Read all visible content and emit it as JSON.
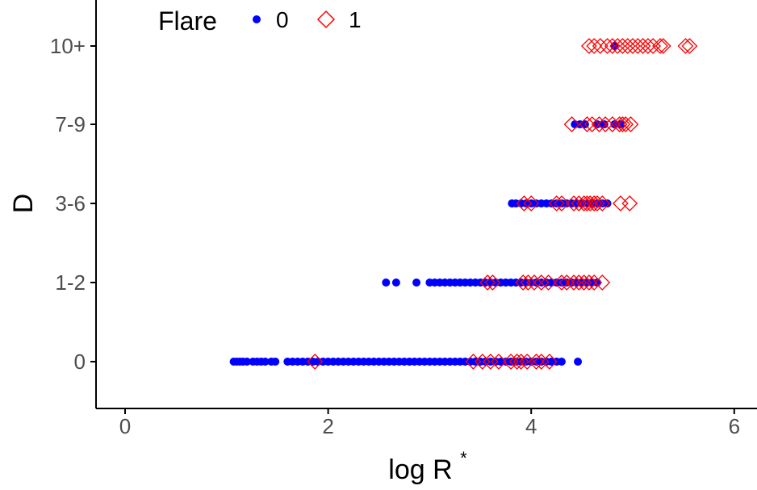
{
  "chart_data": {
    "type": "scatter",
    "xlabel_main": "log R",
    "xlabel_sup": "*",
    "ylabel": "D",
    "xlim": [
      -0.3,
      6.25
    ],
    "x_ticks": [
      0,
      2,
      4,
      6
    ],
    "x_tick_labels": [
      "0",
      "2",
      "4",
      "6"
    ],
    "categories": [
      "0",
      "1-2",
      "3-6",
      "7-9",
      "10+"
    ],
    "legend": {
      "title": "Flare",
      "position": "top-left",
      "entries": [
        "0",
        "1"
      ]
    },
    "colors": {
      "series_0": "#0000ff",
      "series_1": "#ff0000"
    },
    "series": [
      {
        "name": "0",
        "marker": "filled-circle",
        "points": [
          [
            "0",
            1.07
          ],
          [
            "0",
            1.1
          ],
          [
            "0",
            1.13
          ],
          [
            "0",
            1.16
          ],
          [
            "0",
            1.2
          ],
          [
            "0",
            1.26
          ],
          [
            "0",
            1.3
          ],
          [
            "0",
            1.34
          ],
          [
            "0",
            1.38
          ],
          [
            "0",
            1.44
          ],
          [
            "0",
            1.48
          ],
          [
            "0",
            1.6
          ],
          [
            "0",
            1.65
          ],
          [
            "0",
            1.7
          ],
          [
            "0",
            1.75
          ],
          [
            "0",
            1.8
          ],
          [
            "0",
            1.85
          ],
          [
            "0",
            1.9
          ],
          [
            "0",
            1.95
          ],
          [
            "0",
            2.0
          ],
          [
            "0",
            2.05
          ],
          [
            "0",
            2.1
          ],
          [
            "0",
            2.15
          ],
          [
            "0",
            2.2
          ],
          [
            "0",
            2.25
          ],
          [
            "0",
            2.3
          ],
          [
            "0",
            2.35
          ],
          [
            "0",
            2.4
          ],
          [
            "0",
            2.45
          ],
          [
            "0",
            2.5
          ],
          [
            "0",
            2.55
          ],
          [
            "0",
            2.6
          ],
          [
            "0",
            2.65
          ],
          [
            "0",
            2.7
          ],
          [
            "0",
            2.75
          ],
          [
            "0",
            2.8
          ],
          [
            "0",
            2.85
          ],
          [
            "0",
            2.9
          ],
          [
            "0",
            2.95
          ],
          [
            "0",
            3.0
          ],
          [
            "0",
            3.05
          ],
          [
            "0",
            3.1
          ],
          [
            "0",
            3.15
          ],
          [
            "0",
            3.2
          ],
          [
            "0",
            3.25
          ],
          [
            "0",
            3.3
          ],
          [
            "0",
            3.35
          ],
          [
            "0",
            3.4
          ],
          [
            "0",
            3.45
          ],
          [
            "0",
            3.5
          ],
          [
            "0",
            3.55
          ],
          [
            "0",
            3.6
          ],
          [
            "0",
            3.65
          ],
          [
            "0",
            3.7
          ],
          [
            "0",
            3.75
          ],
          [
            "0",
            3.8
          ],
          [
            "0",
            3.85
          ],
          [
            "0",
            3.9
          ],
          [
            "0",
            3.95
          ],
          [
            "0",
            4.0
          ],
          [
            "0",
            4.05
          ],
          [
            "0",
            4.1
          ],
          [
            "0",
            4.15
          ],
          [
            "0",
            4.2
          ],
          [
            "0",
            4.25
          ],
          [
            "0",
            4.3
          ],
          [
            "0",
            4.46
          ],
          [
            "1-2",
            2.57
          ],
          [
            "1-2",
            2.67
          ],
          [
            "1-2",
            2.87
          ],
          [
            "1-2",
            3.0
          ],
          [
            "1-2",
            3.05
          ],
          [
            "1-2",
            3.1
          ],
          [
            "1-2",
            3.15
          ],
          [
            "1-2",
            3.2
          ],
          [
            "1-2",
            3.25
          ],
          [
            "1-2",
            3.3
          ],
          [
            "1-2",
            3.35
          ],
          [
            "1-2",
            3.4
          ],
          [
            "1-2",
            3.45
          ],
          [
            "1-2",
            3.5
          ],
          [
            "1-2",
            3.55
          ],
          [
            "1-2",
            3.6
          ],
          [
            "1-2",
            3.65
          ],
          [
            "1-2",
            3.7
          ],
          [
            "1-2",
            3.75
          ],
          [
            "1-2",
            3.8
          ],
          [
            "1-2",
            3.85
          ],
          [
            "1-2",
            3.9
          ],
          [
            "1-2",
            3.95
          ],
          [
            "1-2",
            4.0
          ],
          [
            "1-2",
            4.05
          ],
          [
            "1-2",
            4.1
          ],
          [
            "1-2",
            4.15
          ],
          [
            "1-2",
            4.2
          ],
          [
            "1-2",
            4.25
          ],
          [
            "1-2",
            4.3
          ],
          [
            "1-2",
            4.35
          ],
          [
            "1-2",
            4.4
          ],
          [
            "1-2",
            4.45
          ],
          [
            "1-2",
            4.5
          ],
          [
            "1-2",
            4.55
          ],
          [
            "1-2",
            4.6
          ],
          [
            "1-2",
            4.65
          ],
          [
            "3-6",
            3.81
          ],
          [
            "3-6",
            3.85
          ],
          [
            "3-6",
            3.9
          ],
          [
            "3-6",
            3.95
          ],
          [
            "3-6",
            4.0
          ],
          [
            "3-6",
            4.05
          ],
          [
            "3-6",
            4.1
          ],
          [
            "3-6",
            4.15
          ],
          [
            "3-6",
            4.2
          ],
          [
            "3-6",
            4.25
          ],
          [
            "3-6",
            4.3
          ],
          [
            "3-6",
            4.35
          ],
          [
            "3-6",
            4.4
          ],
          [
            "3-6",
            4.45
          ],
          [
            "3-6",
            4.5
          ],
          [
            "3-6",
            4.55
          ],
          [
            "3-6",
            4.6
          ],
          [
            "3-6",
            4.65
          ],
          [
            "3-6",
            4.7
          ],
          [
            "3-6",
            4.75
          ],
          [
            "7-9",
            4.43
          ],
          [
            "7-9",
            4.48
          ],
          [
            "7-9",
            4.53
          ],
          [
            "7-9",
            4.65
          ],
          [
            "7-9",
            4.72
          ],
          [
            "7-9",
            4.82
          ],
          [
            "7-9",
            4.88
          ],
          [
            "10+",
            4.82
          ]
        ]
      },
      {
        "name": "1",
        "marker": "open-diamond",
        "points": [
          [
            "0",
            1.87
          ],
          [
            "0",
            3.43
          ],
          [
            "0",
            3.52
          ],
          [
            "0",
            3.6
          ],
          [
            "0",
            3.68
          ],
          [
            "0",
            3.8
          ],
          [
            "0",
            3.86
          ],
          [
            "0",
            3.9
          ],
          [
            "0",
            3.96
          ],
          [
            "0",
            4.05
          ],
          [
            "0",
            4.1
          ],
          [
            "0",
            4.18
          ],
          [
            "1-2",
            3.57
          ],
          [
            "1-2",
            3.62
          ],
          [
            "1-2",
            3.92
          ],
          [
            "1-2",
            3.97
          ],
          [
            "1-2",
            4.03
          ],
          [
            "1-2",
            4.1
          ],
          [
            "1-2",
            4.17
          ],
          [
            "1-2",
            4.3
          ],
          [
            "1-2",
            4.35
          ],
          [
            "1-2",
            4.42
          ],
          [
            "1-2",
            4.47
          ],
          [
            "1-2",
            4.52
          ],
          [
            "1-2",
            4.57
          ],
          [
            "1-2",
            4.62
          ],
          [
            "1-2",
            4.7
          ],
          [
            "3-6",
            3.93
          ],
          [
            "3-6",
            4.0
          ],
          [
            "3-6",
            4.25
          ],
          [
            "3-6",
            4.3
          ],
          [
            "3-6",
            4.42
          ],
          [
            "3-6",
            4.47
          ],
          [
            "3-6",
            4.52
          ],
          [
            "3-6",
            4.55
          ],
          [
            "3-6",
            4.58
          ],
          [
            "3-6",
            4.62
          ],
          [
            "3-6",
            4.65
          ],
          [
            "3-6",
            4.7
          ],
          [
            "3-6",
            4.88
          ],
          [
            "3-6",
            4.97
          ],
          [
            "7-9",
            4.4
          ],
          [
            "7-9",
            4.55
          ],
          [
            "7-9",
            4.6
          ],
          [
            "7-9",
            4.67
          ],
          [
            "7-9",
            4.73
          ],
          [
            "7-9",
            4.8
          ],
          [
            "7-9",
            4.87
          ],
          [
            "7-9",
            4.9
          ],
          [
            "7-9",
            4.93
          ],
          [
            "7-9",
            4.98
          ],
          [
            "10+",
            4.57
          ],
          [
            "10+",
            4.62
          ],
          [
            "10+",
            4.68
          ],
          [
            "10+",
            4.75
          ],
          [
            "10+",
            4.8
          ],
          [
            "10+",
            4.85
          ],
          [
            "10+",
            4.9
          ],
          [
            "10+",
            4.95
          ],
          [
            "10+",
            5.0
          ],
          [
            "10+",
            5.05
          ],
          [
            "10+",
            5.1
          ],
          [
            "10+",
            5.15
          ],
          [
            "10+",
            5.2
          ],
          [
            "10+",
            5.27
          ],
          [
            "10+",
            5.3
          ],
          [
            "10+",
            5.52
          ],
          [
            "10+",
            5.56
          ]
        ]
      }
    ]
  }
}
